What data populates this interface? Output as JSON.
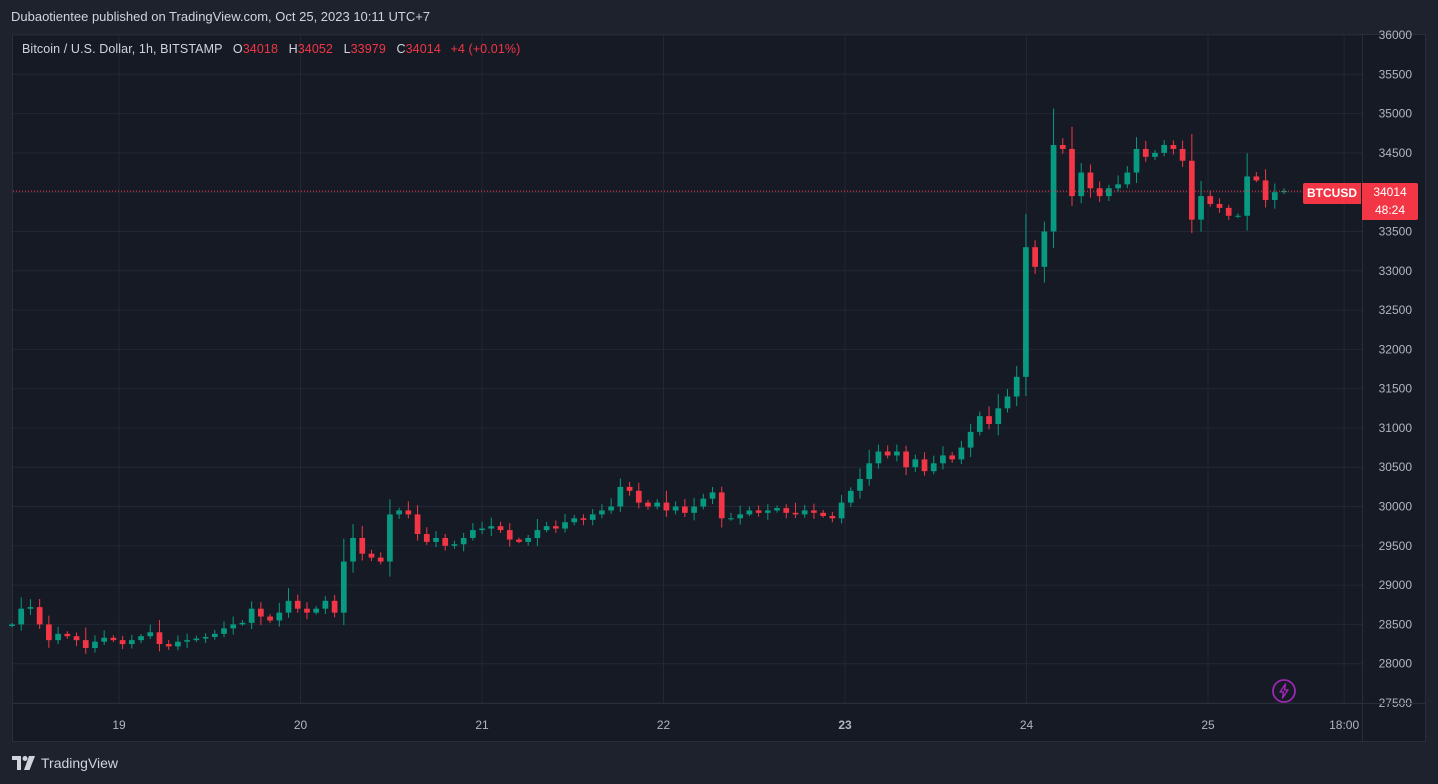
{
  "header": {
    "published": "Dubaotientee published on TradingView.com, Oct 25, 2023 10:11 UTC+7"
  },
  "legend": {
    "symbol": "Bitcoin / U.S. Dollar, 1h, BITSTAMP",
    "open_label": "O",
    "open": "34018",
    "high_label": "H",
    "high": "34052",
    "low_label": "L",
    "low": "33979",
    "close_label": "C",
    "close": "34014",
    "change": "+4 (+0.01%)"
  },
  "price_tag": {
    "symbol": "BTCUSD",
    "price": "34014",
    "countdown": "48:24"
  },
  "footer": {
    "brand": "TradingView"
  },
  "colors": {
    "up": "#089981",
    "down": "#f23645",
    "grid": "#232735",
    "background": "#161a25",
    "bolt": "#9c27b0"
  },
  "icons": {
    "lightning": "lightning-icon",
    "logo": "tradingview-logo-icon"
  },
  "chart_data": {
    "type": "candlestick",
    "title": "Bitcoin / U.S. Dollar, 1h, BITSTAMP",
    "ylim": [
      27500,
      36000
    ],
    "yticks": [
      27500,
      28000,
      28500,
      29000,
      29500,
      30000,
      30500,
      31000,
      31500,
      32000,
      32500,
      33000,
      33500,
      34000,
      34500,
      35000,
      35500,
      36000
    ],
    "xticks": [
      {
        "label": "19",
        "day": 19.0,
        "bold": false
      },
      {
        "label": "20",
        "day": 20.0,
        "bold": false
      },
      {
        "label": "21",
        "day": 21.0,
        "bold": false
      },
      {
        "label": "22",
        "day": 22.0,
        "bold": false
      },
      {
        "label": "23",
        "day": 23.0,
        "bold": true
      },
      {
        "label": "24",
        "day": 24.0,
        "bold": false
      },
      {
        "label": "25",
        "day": 25.0,
        "bold": false
      },
      {
        "label": "18:00",
        "day": 25.75,
        "bold": false
      }
    ],
    "last_price": 34014,
    "closes": [
      28500,
      28700,
      28720,
      28500,
      28300,
      28380,
      28350,
      28300,
      28200,
      28280,
      28330,
      28300,
      28250,
      28300,
      28350,
      28400,
      28250,
      28220,
      28280,
      28300,
      28320,
      28340,
      28380,
      28450,
      28500,
      28520,
      28700,
      28600,
      28550,
      28650,
      28800,
      28700,
      28650,
      28700,
      28800,
      28650,
      29300,
      29600,
      29400,
      29350,
      29300,
      29900,
      29950,
      29900,
      29650,
      29550,
      29600,
      29500,
      29520,
      29600,
      29700,
      29720,
      29750,
      29700,
      29580,
      29550,
      29600,
      29700,
      29750,
      29720,
      29800,
      29850,
      29830,
      29900,
      29950,
      30000,
      30250,
      30200,
      30050,
      30000,
      30050,
      29950,
      30000,
      29920,
      30000,
      30100,
      30180,
      29850,
      29850,
      29900,
      29950,
      29920,
      29950,
      29980,
      29920,
      29900,
      29950,
      29920,
      29880,
      29850,
      30050,
      30200,
      30350,
      30550,
      30700,
      30650,
      30700,
      30500,
      30600,
      30450,
      30550,
      30650,
      30600,
      30750,
      30950,
      31150,
      31050,
      31250,
      31400,
      31650,
      33300,
      33050,
      33500,
      34600,
      34550,
      33950,
      34250,
      34050,
      33950,
      34050,
      34100,
      34250,
      34550,
      34450,
      34500,
      34600,
      34550,
      34400,
      33650,
      33950,
      33850,
      33800,
      33700,
      33700,
      34200,
      34150,
      33900,
      34000,
      34014
    ]
  }
}
